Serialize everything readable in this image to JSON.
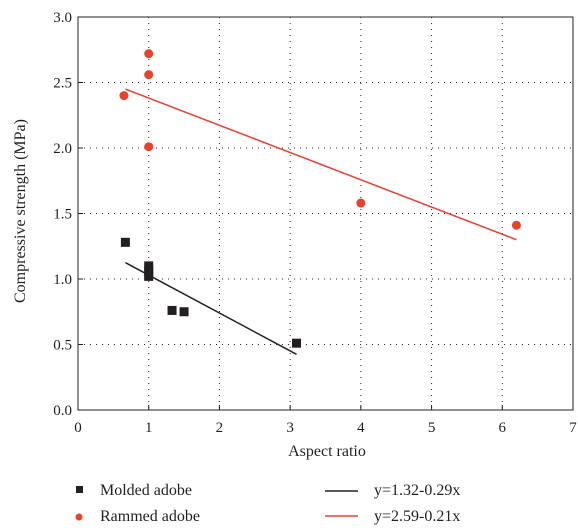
{
  "chart_data": {
    "type": "scatter",
    "xlabel": "Aspect ratio",
    "ylabel": "Compressive strength (MPa)",
    "xlim": [
      0,
      7
    ],
    "ylim": [
      0,
      3.0
    ],
    "x_ticks": [
      "0",
      "1",
      "2",
      "3",
      "4",
      "5",
      "6",
      "7"
    ],
    "y_ticks": [
      "0.0",
      "0.5",
      "1.0",
      "1.5",
      "2.0",
      "2.5",
      "3.0"
    ],
    "grid": "dotted",
    "legend_position": "bottom",
    "series": [
      {
        "name": "Molded adobe",
        "marker": "square",
        "color": "#231f20",
        "points": [
          {
            "x": 0.67,
            "y": 1.28
          },
          {
            "x": 1.0,
            "y": 1.1
          },
          {
            "x": 1.0,
            "y": 1.07
          },
          {
            "x": 1.0,
            "y": 1.05
          },
          {
            "x": 1.0,
            "y": 1.02
          },
          {
            "x": 1.33,
            "y": 0.76
          },
          {
            "x": 1.5,
            "y": 0.75
          },
          {
            "x": 3.09,
            "y": 0.51
          }
        ]
      },
      {
        "name": "Rammed adobe",
        "marker": "circle",
        "color": "#e8412c",
        "points": [
          {
            "x": 0.65,
            "y": 2.4
          },
          {
            "x": 1.0,
            "y": 2.72
          },
          {
            "x": 1.0,
            "y": 2.56
          },
          {
            "x": 1.0,
            "y": 2.01
          },
          {
            "x": 4.0,
            "y": 1.58
          },
          {
            "x": 6.2,
            "y": 1.41
          }
        ]
      }
    ],
    "fits": [
      {
        "name": "y=1.32-0.29x",
        "color": "#231f20",
        "x_range": [
          0.67,
          3.09
        ],
        "y_range": [
          1.125,
          0.425
        ]
      },
      {
        "name": "y=2.59-0.21x",
        "color": "#e8412c",
        "x_range": [
          0.67,
          6.2
        ],
        "y_range": [
          2.45,
          1.3
        ]
      }
    ]
  }
}
